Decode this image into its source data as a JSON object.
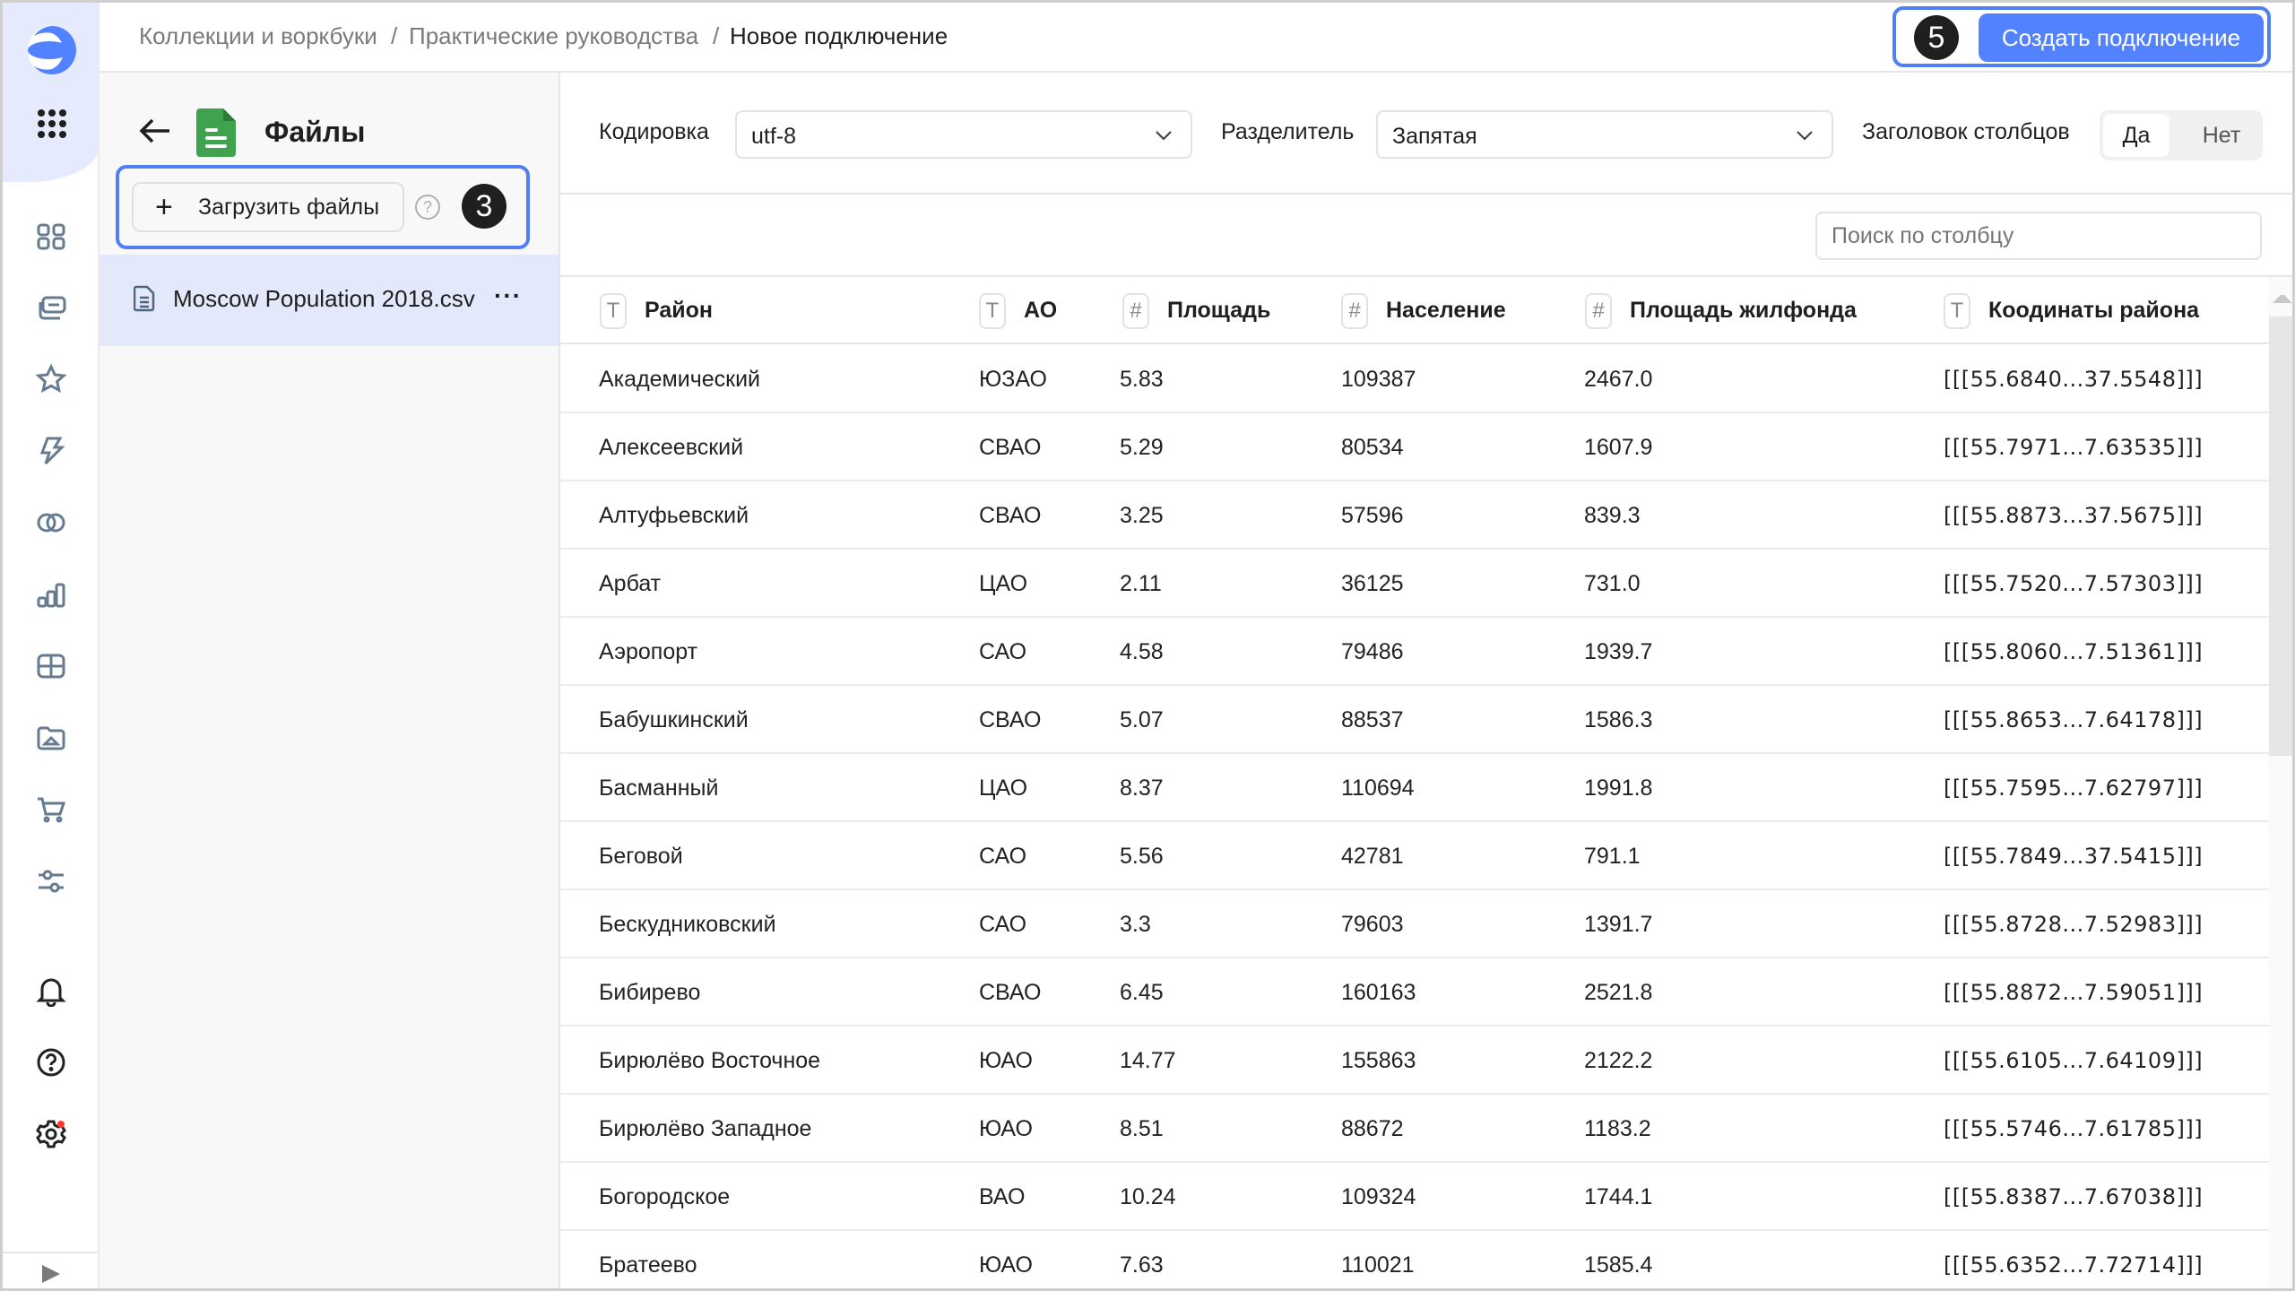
{
  "breadcrumb": [
    "Коллекции и воркбуки",
    "Практические руководства",
    "Новое подключение"
  ],
  "breadcrumb_separator": "/",
  "create_button": "Создать подключение",
  "step_badges": {
    "create": "5",
    "upload": "3"
  },
  "left_panel": {
    "title": "Файлы",
    "upload_button": "Загрузить файлы",
    "files": [
      {
        "name": "Moscow Population 2018.csv",
        "selected": true
      }
    ]
  },
  "options": {
    "encoding_label": "Кодировка",
    "encoding_value": "utf-8",
    "delimiter_label": "Разделитель",
    "delimiter_value": "Запятая",
    "header_label": "Заголовок столбцов",
    "header_yes": "Да",
    "header_no": "Нет",
    "header_selected": "Да"
  },
  "search": {
    "placeholder": "Поиск по столбцу"
  },
  "table": {
    "columns": [
      {
        "label": "Район",
        "type": "T"
      },
      {
        "label": "АО",
        "type": "T"
      },
      {
        "label": "Площадь",
        "type": "#"
      },
      {
        "label": "Население",
        "type": "#"
      },
      {
        "label": "Площадь жилфонда",
        "type": "#"
      },
      {
        "label": "Коодинаты района",
        "type": "T"
      }
    ],
    "rows": [
      [
        "Академический",
        "ЮЗАО",
        "5.83",
        "109387",
        "2467.0",
        "[[[55.6840...37.5548]]]"
      ],
      [
        "Алексеевский",
        "СВАО",
        "5.29",
        "80534",
        "1607.9",
        "[[[55.7971...7.63535]]]"
      ],
      [
        "Алтуфьевский",
        "СВАО",
        "3.25",
        "57596",
        "839.3",
        "[[[55.8873...37.5675]]]"
      ],
      [
        "Арбат",
        "ЦАО",
        "2.11",
        "36125",
        "731.0",
        "[[[55.7520...7.57303]]]"
      ],
      [
        "Аэропорт",
        "САО",
        "4.58",
        "79486",
        "1939.7",
        "[[[55.8060...7.51361]]]"
      ],
      [
        "Бабушкинский",
        "СВАО",
        "5.07",
        "88537",
        "1586.3",
        "[[[55.8653...7.64178]]]"
      ],
      [
        "Басманный",
        "ЦАО",
        "8.37",
        "110694",
        "1991.8",
        "[[[55.7595...7.62797]]]"
      ],
      [
        "Беговой",
        "САО",
        "5.56",
        "42781",
        "791.1",
        "[[[55.7849...37.5415]]]"
      ],
      [
        "Бескудниковский",
        "САО",
        "3.3",
        "79603",
        "1391.7",
        "[[[55.8728...7.52983]]]"
      ],
      [
        "Бибирево",
        "СВАО",
        "6.45",
        "160163",
        "2521.8",
        "[[[55.8872...7.59051]]]"
      ],
      [
        "Бирюлёво Восточное",
        "ЮАО",
        "14.77",
        "155863",
        "2122.2",
        "[[[55.6105...7.64109]]]"
      ],
      [
        "Бирюлёво Западное",
        "ЮАО",
        "8.51",
        "88672",
        "1183.2",
        "[[[55.5746...7.61785]]]"
      ],
      [
        "Богородское",
        "ВАО",
        "10.24",
        "109324",
        "1744.1",
        "[[[55.8387...7.67038]]]"
      ],
      [
        "Братеево",
        "ЮАО",
        "7.63",
        "110021",
        "1585.4",
        "[[[55.6352...7.72714]]]"
      ]
    ]
  },
  "rail_icons": [
    "logo-icon",
    "apps-grid-icon",
    "collections-icon",
    "workbooks-icon",
    "favorites-icon",
    "actions-icon",
    "connections-icon",
    "charts-icon",
    "dashboards-icon",
    "datasets-icon",
    "marketplace-icon",
    "settings-sliders-icon",
    "notifications-icon",
    "help-icon",
    "settings-icon"
  ],
  "colors": {
    "accent": "#5282ff",
    "highlight_outline": "#4f7ff2",
    "selected_bg": "#e3e8fa",
    "rail_top_bg": "#e5ebfc",
    "file_icon": "#3fa34d"
  }
}
